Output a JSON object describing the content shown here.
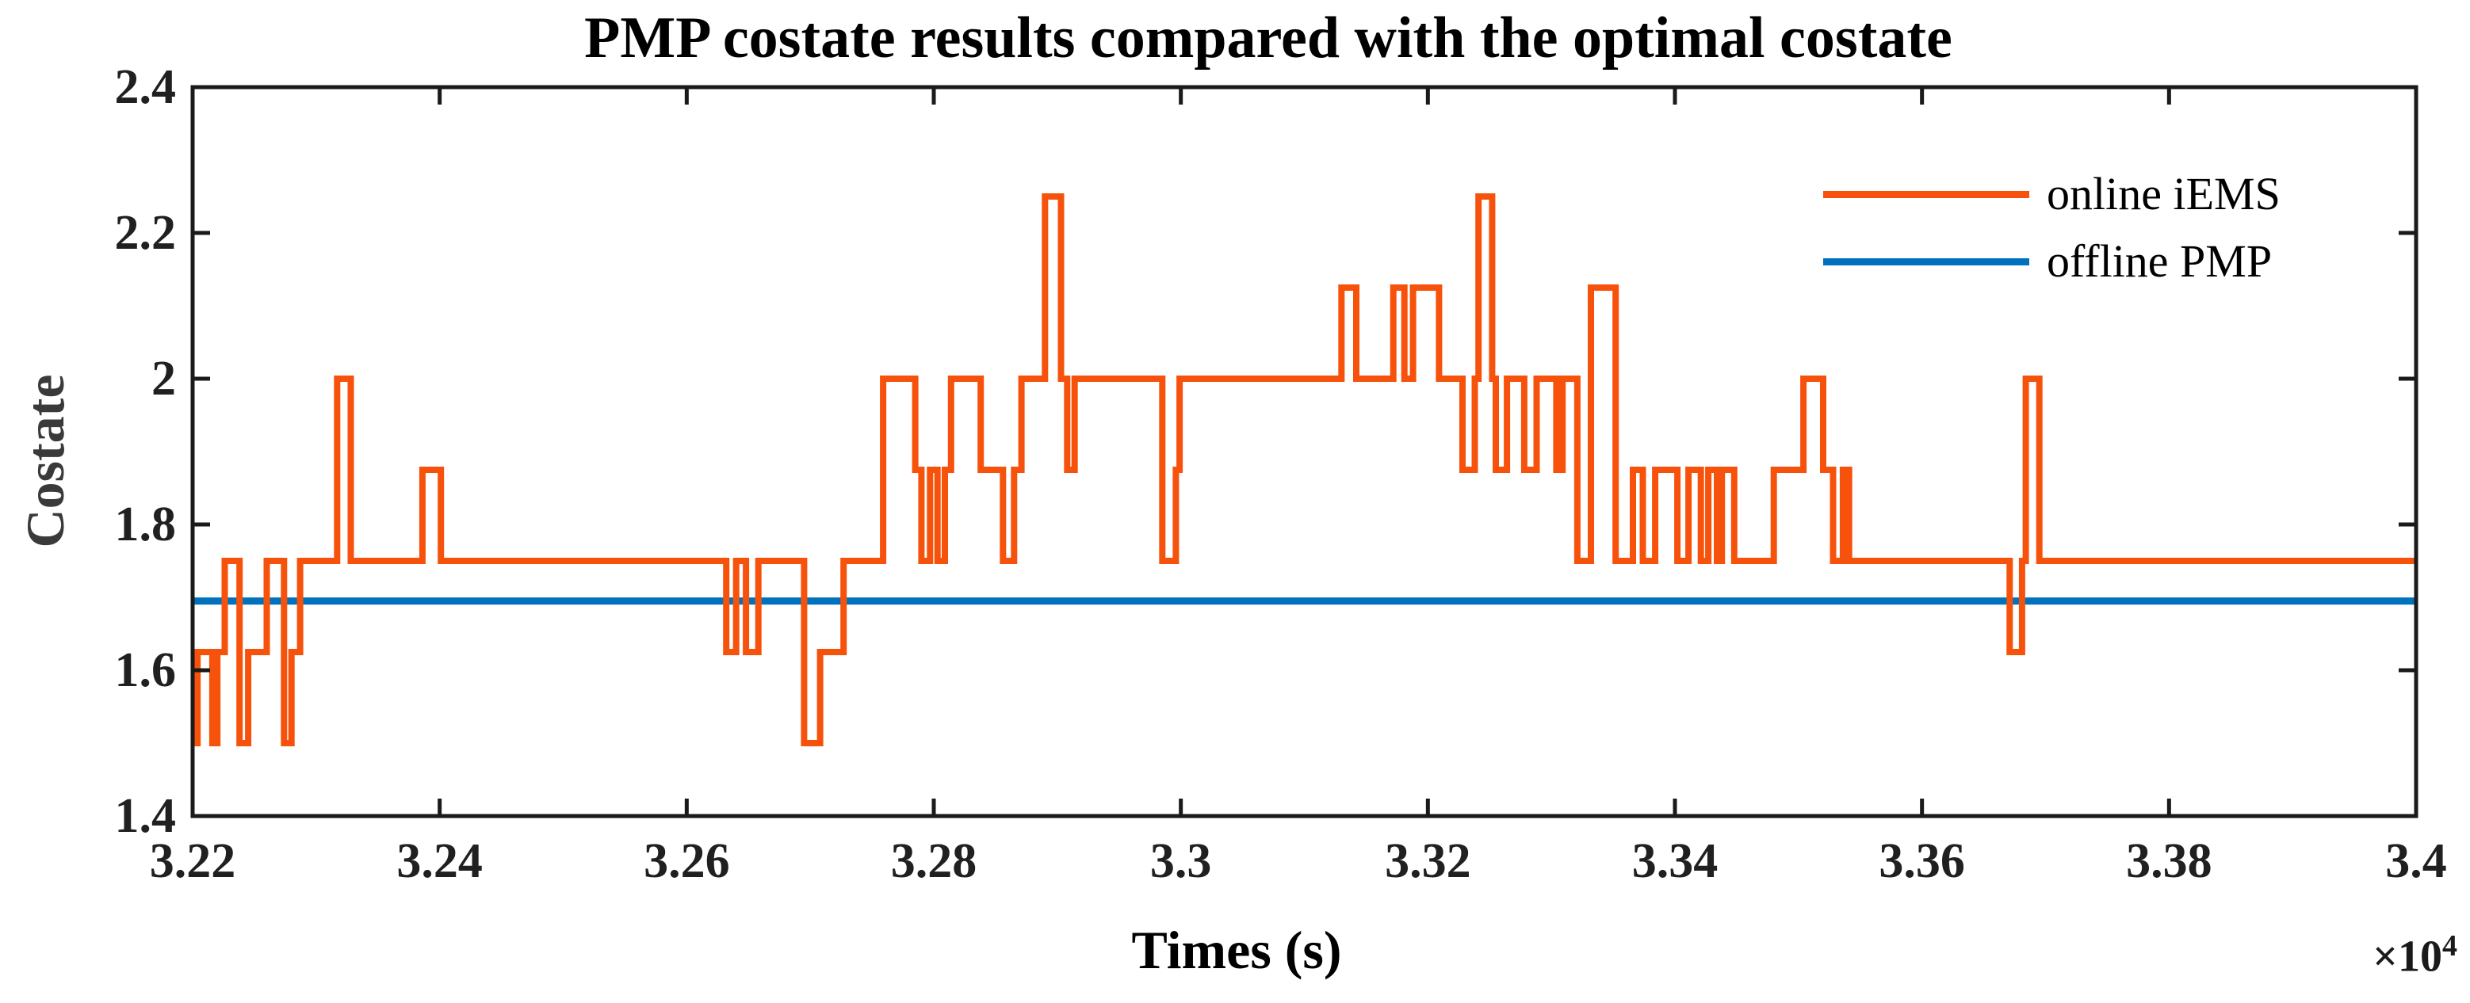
{
  "figure": {
    "background": "#ffffff",
    "axes_color": "#1a1a1a",
    "tick_label_color": "#202020",
    "title_color": "#000000",
    "y_label_color": "#3a3a3a"
  },
  "chart_data": {
    "type": "line",
    "title": "PMP costate results compared with the optimal costate",
    "xlabel": "Times (s)",
    "ylabel": "Costate",
    "x_offset": {
      "base": "×10",
      "exponent": "4"
    },
    "xlim": [
      32200,
      34000
    ],
    "ylim": [
      1.4,
      2.4
    ],
    "grid": false,
    "legend_position": "upper right, no box",
    "x_ticks": [
      {
        "value": 32200,
        "label": "3.22"
      },
      {
        "value": 32400,
        "label": "3.24"
      },
      {
        "value": 32600,
        "label": "3.26"
      },
      {
        "value": 32800,
        "label": "3.28"
      },
      {
        "value": 33000,
        "label": "3.3"
      },
      {
        "value": 33200,
        "label": "3.32"
      },
      {
        "value": 33400,
        "label": "3.34"
      },
      {
        "value": 33600,
        "label": "3.36"
      },
      {
        "value": 33800,
        "label": "3.38"
      },
      {
        "value": 34000,
        "label": "3.4"
      }
    ],
    "y_ticks": [
      {
        "value": 1.4,
        "label": "1.4"
      },
      {
        "value": 1.6,
        "label": "1.6"
      },
      {
        "value": 1.8,
        "label": "1.8"
      },
      {
        "value": 2.0,
        "label": "2"
      },
      {
        "value": 2.2,
        "label": "2.2"
      },
      {
        "value": 2.4,
        "label": "2.4"
      }
    ],
    "series": [
      {
        "name": "online iEMS",
        "color": "#F7520B",
        "style": "step",
        "line_width": 8,
        "points": [
          [
            32200,
            1.5
          ],
          [
            32204,
            1.625
          ],
          [
            32216,
            1.5
          ],
          [
            32220,
            1.625
          ],
          [
            32226,
            1.75
          ],
          [
            32238,
            1.5
          ],
          [
            32245,
            1.625
          ],
          [
            32260,
            1.75
          ],
          [
            32274,
            1.5
          ],
          [
            32280,
            1.625
          ],
          [
            32287,
            1.75
          ],
          [
            32317,
            2
          ],
          [
            32328,
            1.75
          ],
          [
            32386,
            1.875
          ],
          [
            32401,
            1.75
          ],
          [
            32632,
            1.625
          ],
          [
            32640,
            1.75
          ],
          [
            32648,
            1.625
          ],
          [
            32658,
            1.75
          ],
          [
            32695,
            1.5
          ],
          [
            32708,
            1.625
          ],
          [
            32727,
            1.75
          ],
          [
            32759,
            2
          ],
          [
            32785,
            1.875
          ],
          [
            32790,
            1.75
          ],
          [
            32797,
            1.875
          ],
          [
            32803,
            1.75
          ],
          [
            32809,
            1.875
          ],
          [
            32814,
            2
          ],
          [
            32838,
            1.875
          ],
          [
            32856,
            1.75
          ],
          [
            32865,
            1.875
          ],
          [
            32871,
            2
          ],
          [
            32890,
            2.25
          ],
          [
            32903,
            2
          ],
          [
            32908,
            1.875
          ],
          [
            32914,
            2
          ],
          [
            32985,
            1.75
          ],
          [
            32996,
            1.875
          ],
          [
            32999,
            2
          ],
          [
            33130,
            2.125
          ],
          [
            33142,
            2
          ],
          [
            33172,
            2.125
          ],
          [
            33181,
            2
          ],
          [
            33188,
            2.125
          ],
          [
            33209,
            2
          ],
          [
            33228,
            1.875
          ],
          [
            33238,
            2
          ],
          [
            33241,
            2.25
          ],
          [
            33252,
            2
          ],
          [
            33255,
            1.875
          ],
          [
            33264,
            2
          ],
          [
            33278,
            1.875
          ],
          [
            33288,
            2
          ],
          [
            33304,
            1.875
          ],
          [
            33309,
            2
          ],
          [
            33321,
            1.75
          ],
          [
            33332,
            2.125
          ],
          [
            33352,
            1.75
          ],
          [
            33366,
            1.875
          ],
          [
            33374,
            1.75
          ],
          [
            33384,
            1.875
          ],
          [
            33402,
            1.75
          ],
          [
            33411,
            1.875
          ],
          [
            33421,
            1.75
          ],
          [
            33427,
            1.875
          ],
          [
            33434,
            1.75
          ],
          [
            33438,
            1.875
          ],
          [
            33448,
            1.75
          ],
          [
            33480,
            1.875
          ],
          [
            33504,
            2
          ],
          [
            33520,
            1.875
          ],
          [
            33528,
            1.75
          ],
          [
            33536,
            1.875
          ],
          [
            33541,
            1.75
          ],
          [
            33671,
            1.625
          ],
          [
            33681,
            1.75
          ],
          [
            33684,
            2
          ],
          [
            33695,
            1.75
          ],
          [
            34000,
            1.75
          ]
        ]
      },
      {
        "name": "offline PMP",
        "color": "#0072BD",
        "style": "constant",
        "line_width": 9,
        "value": 1.695
      }
    ]
  }
}
